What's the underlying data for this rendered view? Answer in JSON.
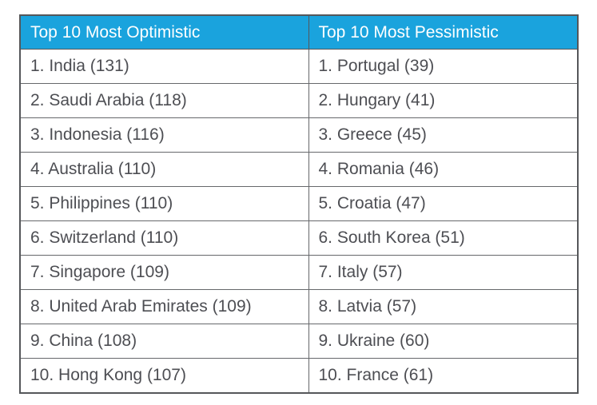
{
  "colors": {
    "header_bg": "#1aa3dd",
    "header_text": "#ffffff",
    "body_text": "#4d4e53",
    "border_outer": "#55575a",
    "border_inner": "#66686b",
    "row_bg": "#ffffff"
  },
  "table": {
    "headers": {
      "optimistic": "Top 10 Most Optimistic",
      "pessimistic": "Top 10 Most Pessimistic"
    },
    "rows": [
      {
        "optimistic": "1. India (131)",
        "pessimistic": "1. Portugal (39)"
      },
      {
        "optimistic": "2. Saudi Arabia (118)",
        "pessimistic": "2. Hungary (41)"
      },
      {
        "optimistic": "3. Indonesia (116)",
        "pessimistic": "3. Greece (45)"
      },
      {
        "optimistic": "4. Australia (110)",
        "pessimistic": "4. Romania (46)"
      },
      {
        "optimistic": "5. Philippines (110)",
        "pessimistic": "5. Croatia (47)"
      },
      {
        "optimistic": "6. Switzerland (110)",
        "pessimistic": "6. South Korea (51)"
      },
      {
        "optimistic": "7. Singapore (109)",
        "pessimistic": "7. Italy (57)"
      },
      {
        "optimistic": "8. United Arab Emirates (109)",
        "pessimistic": "8. Latvia (57)"
      },
      {
        "optimistic": "9. China (108)",
        "pessimistic": "9. Ukraine (60)"
      },
      {
        "optimistic": "10. Hong Kong (107)",
        "pessimistic": "10. France (61)"
      }
    ]
  },
  "chart_data": {
    "type": "table",
    "columns": [
      "Top 10 Most Optimistic",
      "Top 10 Most Pessimistic"
    ],
    "optimistic": [
      {
        "rank": 1,
        "country": "India",
        "value": 131
      },
      {
        "rank": 2,
        "country": "Saudi Arabia",
        "value": 118
      },
      {
        "rank": 3,
        "country": "Indonesia",
        "value": 116
      },
      {
        "rank": 4,
        "country": "Australia",
        "value": 110
      },
      {
        "rank": 5,
        "country": "Philippines",
        "value": 110
      },
      {
        "rank": 6,
        "country": "Switzerland",
        "value": 110
      },
      {
        "rank": 7,
        "country": "Singapore",
        "value": 109
      },
      {
        "rank": 8,
        "country": "United Arab Emirates",
        "value": 109
      },
      {
        "rank": 9,
        "country": "China",
        "value": 108
      },
      {
        "rank": 10,
        "country": "Hong Kong",
        "value": 107
      }
    ],
    "pessimistic": [
      {
        "rank": 1,
        "country": "Portugal",
        "value": 39
      },
      {
        "rank": 2,
        "country": "Hungary",
        "value": 41
      },
      {
        "rank": 3,
        "country": "Greece",
        "value": 45
      },
      {
        "rank": 4,
        "country": "Romania",
        "value": 46
      },
      {
        "rank": 5,
        "country": "Croatia",
        "value": 47
      },
      {
        "rank": 6,
        "country": "South Korea",
        "value": 51
      },
      {
        "rank": 7,
        "country": "Italy",
        "value": 57
      },
      {
        "rank": 8,
        "country": "Latvia",
        "value": 57
      },
      {
        "rank": 9,
        "country": "Ukraine",
        "value": 60
      },
      {
        "rank": 10,
        "country": "France",
        "value": 61
      }
    ]
  }
}
